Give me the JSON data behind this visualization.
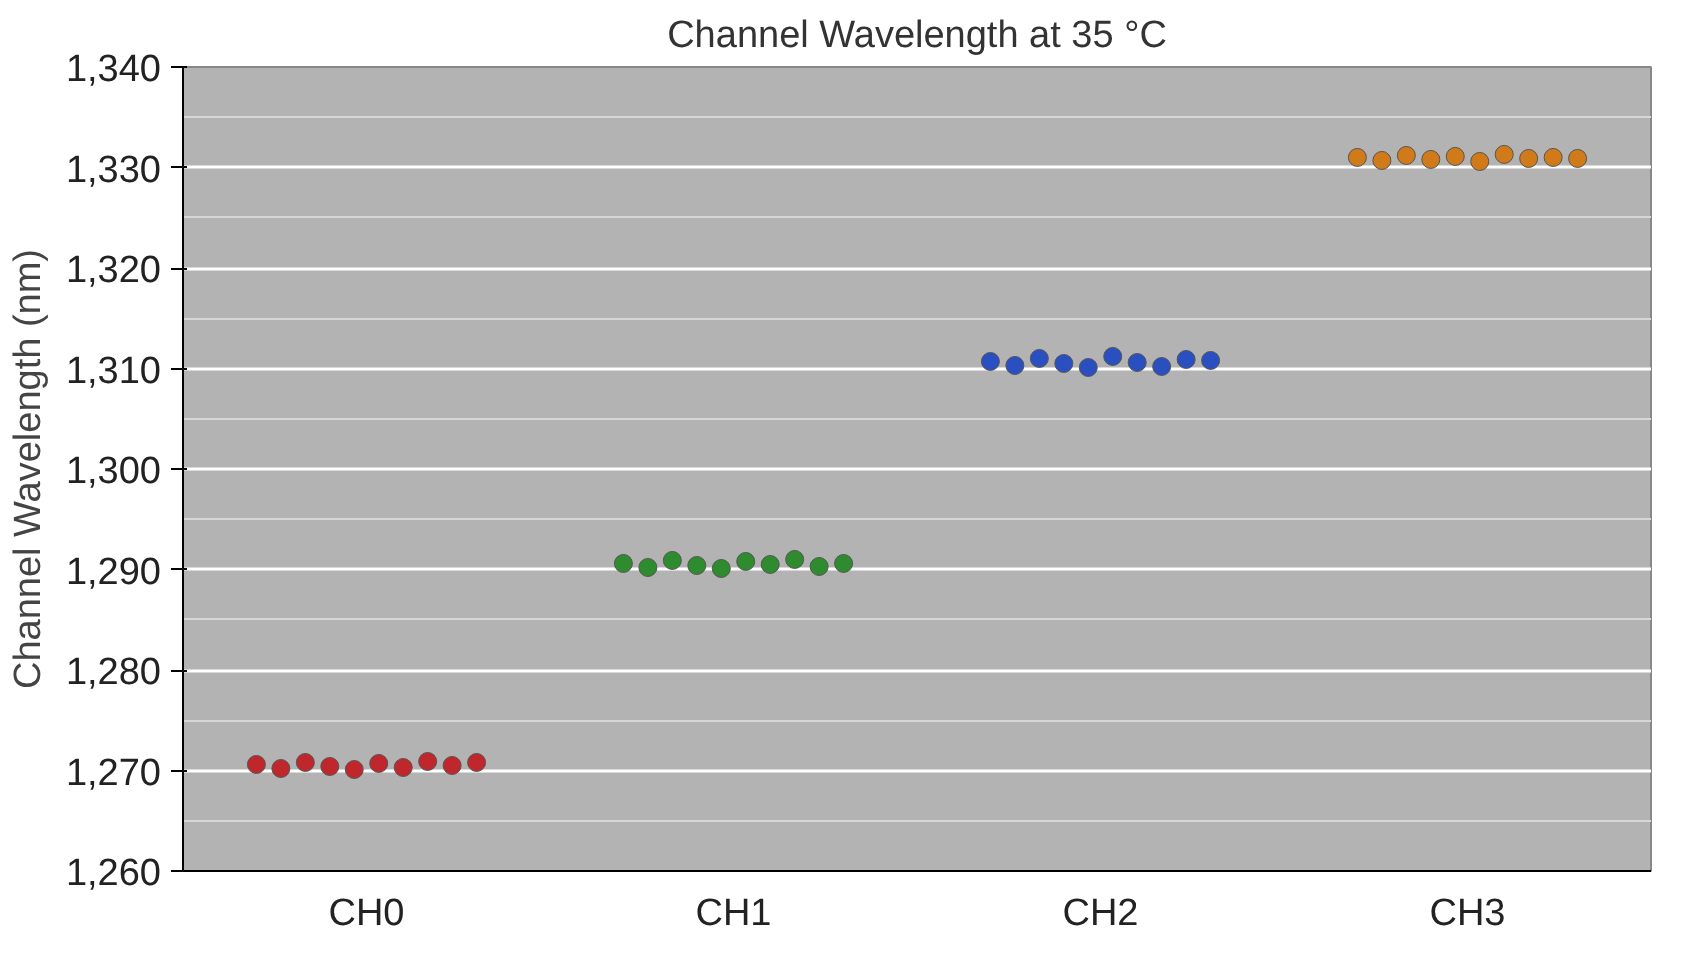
{
  "chart_data": {
    "type": "scatter",
    "title": "Channel Wavelength at 35 °C",
    "ylabel": "Channel Wavelength (nm)",
    "categories": [
      "CH0",
      "CH1",
      "CH2",
      "CH3"
    ],
    "ylim": [
      1260,
      1340
    ],
    "yticks": [
      {
        "value": 1260,
        "label": "1,260"
      },
      {
        "value": 1270,
        "label": "1,270"
      },
      {
        "value": 1280,
        "label": "1,280"
      },
      {
        "value": 1290,
        "label": "1,290"
      },
      {
        "value": 1300,
        "label": "1,300"
      },
      {
        "value": 1310,
        "label": "1,310"
      },
      {
        "value": 1320,
        "label": "1,320"
      },
      {
        "value": 1330,
        "label": "1,330"
      },
      {
        "value": 1340,
        "label": "1,340"
      }
    ],
    "grid": "y",
    "marker": "circle",
    "series": [
      {
        "color": "#c0272d",
        "x": [
          "CH0",
          "CH0",
          "CH0",
          "CH0",
          "CH0",
          "CH0",
          "CH0",
          "CH0",
          "CH0",
          "CH0"
        ],
        "values": [
          1270.6,
          1270.2,
          1270.8,
          1270.4,
          1270.1,
          1270.7,
          1270.3,
          1270.9,
          1270.5,
          1270.8
        ]
      },
      {
        "color": "#2e8b2e",
        "x": [
          "CH1",
          "CH1",
          "CH1",
          "CH1",
          "CH1",
          "CH1",
          "CH1",
          "CH1",
          "CH1",
          "CH1"
        ],
        "values": [
          1290.6,
          1290.2,
          1290.9,
          1290.4,
          1290.1,
          1290.8,
          1290.5,
          1291.0,
          1290.3,
          1290.6
        ]
      },
      {
        "color": "#2a4fc0",
        "x": [
          "CH2",
          "CH2",
          "CH2",
          "CH2",
          "CH2",
          "CH2",
          "CH2",
          "CH2",
          "CH2",
          "CH2"
        ],
        "values": [
          1310.7,
          1310.3,
          1311.0,
          1310.5,
          1310.1,
          1311.2,
          1310.6,
          1310.2,
          1310.9,
          1310.8
        ]
      },
      {
        "color": "#d17a1a",
        "x": [
          "CH3",
          "CH3",
          "CH3",
          "CH3",
          "CH3",
          "CH3",
          "CH3",
          "CH3",
          "CH3",
          "CH3"
        ],
        "values": [
          1331.0,
          1330.7,
          1331.2,
          1330.8,
          1331.1,
          1330.6,
          1331.3,
          1330.9,
          1331.0,
          1330.9
        ]
      }
    ]
  }
}
